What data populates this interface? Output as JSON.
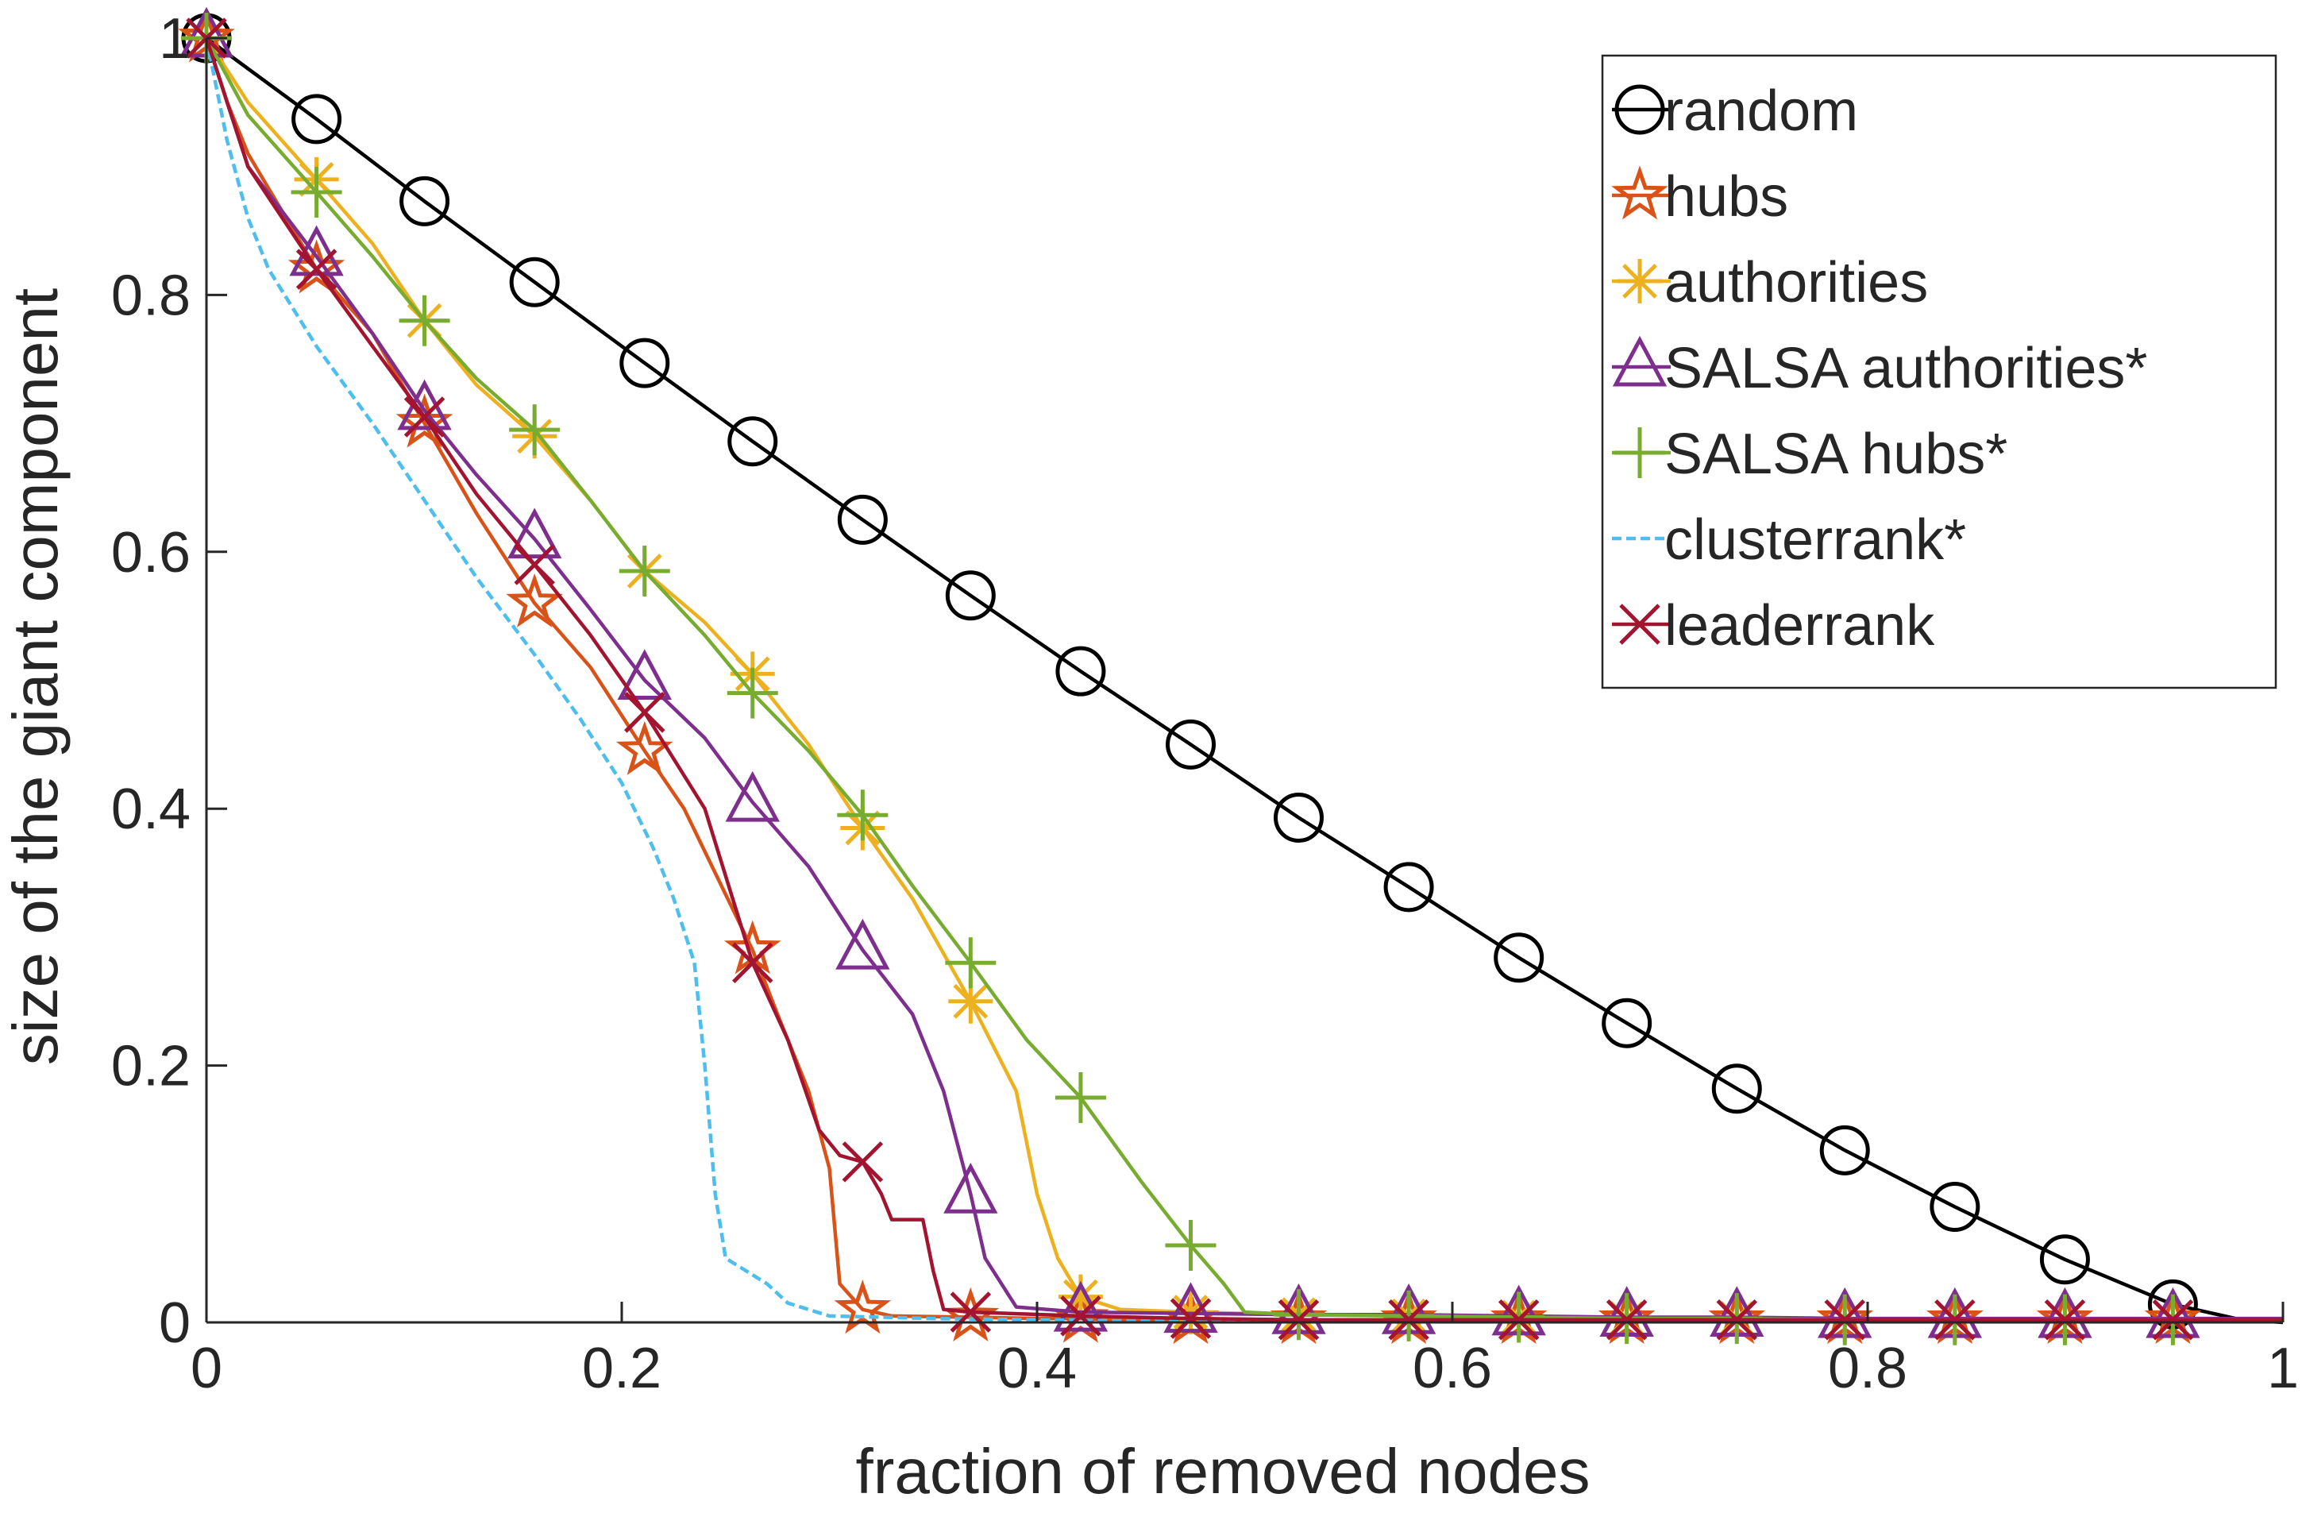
{
  "chart_data": {
    "type": "line",
    "title": "",
    "xlabel": "fraction of removed nodes",
    "ylabel": "size of the giant component",
    "xlim": [
      0,
      1
    ],
    "ylim": [
      0,
      1
    ],
    "xticks": [
      0,
      0.2,
      0.4,
      0.6,
      0.8,
      1
    ],
    "yticks": [
      0,
      0.2,
      0.4,
      0.6,
      0.8,
      1
    ],
    "xtick_labels": [
      "0",
      "0.2",
      "0.4",
      "0.6",
      "0.8",
      "1"
    ],
    "ytick_labels": [
      "0",
      "0.2",
      "0.4",
      "0.6",
      "0.8",
      "1"
    ],
    "grid": false,
    "legend_position": "top-right",
    "series": [
      {
        "name": "random",
        "color": "#000000",
        "marker": "circle",
        "dash": "solid",
        "x": [
          0,
          0.053,
          0.105,
          0.158,
          0.211,
          0.263,
          0.316,
          0.368,
          0.421,
          0.474,
          0.526,
          0.579,
          0.632,
          0.684,
          0.737,
          0.789,
          0.842,
          0.895,
          0.947,
          0.98,
          1.0
        ],
        "y": [
          1.0,
          0.937,
          0.873,
          0.81,
          0.747,
          0.686,
          0.625,
          0.566,
          0.507,
          0.45,
          0.393,
          0.339,
          0.284,
          0.233,
          0.182,
          0.134,
          0.09,
          0.049,
          0.014,
          0.002,
          0.0
        ],
        "marker_x": [
          0,
          0.053,
          0.105,
          0.158,
          0.211,
          0.263,
          0.316,
          0.368,
          0.421,
          0.474,
          0.526,
          0.579,
          0.632,
          0.684,
          0.737,
          0.789,
          0.842,
          0.895,
          0.947
        ]
      },
      {
        "name": "hubs",
        "color": "#d95319",
        "marker": "star",
        "dash": "solid",
        "x": [
          0,
          0.01,
          0.02,
          0.053,
          0.08,
          0.105,
          0.13,
          0.158,
          0.185,
          0.211,
          0.23,
          0.245,
          0.263,
          0.275,
          0.29,
          0.3,
          0.305,
          0.316,
          0.33,
          0.368,
          0.4,
          0.421,
          0.44,
          0.474,
          0.526,
          0.579,
          0.632,
          0.684,
          0.737,
          0.789,
          0.842,
          0.895,
          0.947,
          1.0
        ],
        "y": [
          1.0,
          0.95,
          0.91,
          0.82,
          0.77,
          0.7,
          0.63,
          0.56,
          0.51,
          0.445,
          0.4,
          0.35,
          0.29,
          0.24,
          0.18,
          0.12,
          0.03,
          0.01,
          0.005,
          0.004,
          0.003,
          0.003,
          0.002,
          0.002,
          0.002,
          0.002,
          0.002,
          0.002,
          0.002,
          0.002,
          0.002,
          0.002,
          0.002,
          0.002
        ],
        "marker_x": [
          0,
          0.053,
          0.105,
          0.158,
          0.211,
          0.263,
          0.316,
          0.368,
          0.421,
          0.474,
          0.526,
          0.579,
          0.632,
          0.684,
          0.737,
          0.789,
          0.842,
          0.895,
          0.947
        ]
      },
      {
        "name": "authorities",
        "color": "#edb120",
        "marker": "asterisk",
        "dash": "solid",
        "x": [
          0,
          0.02,
          0.053,
          0.08,
          0.105,
          0.13,
          0.158,
          0.185,
          0.211,
          0.24,
          0.263,
          0.29,
          0.316,
          0.34,
          0.368,
          0.39,
          0.4,
          0.41,
          0.421,
          0.44,
          0.474,
          0.526,
          0.579,
          0.632,
          0.684,
          0.737,
          0.789,
          0.842,
          0.895,
          0.947,
          1.0
        ],
        "y": [
          1.0,
          0.95,
          0.89,
          0.84,
          0.78,
          0.73,
          0.69,
          0.64,
          0.585,
          0.545,
          0.505,
          0.45,
          0.385,
          0.33,
          0.25,
          0.18,
          0.1,
          0.05,
          0.02,
          0.01,
          0.008,
          0.006,
          0.005,
          0.004,
          0.003,
          0.003,
          0.002,
          0.002,
          0.002,
          0.002,
          0.002
        ],
        "marker_x": [
          0,
          0.053,
          0.105,
          0.158,
          0.211,
          0.263,
          0.316,
          0.368,
          0.421,
          0.474,
          0.526,
          0.579,
          0.632,
          0.684,
          0.737,
          0.789,
          0.842,
          0.895,
          0.947
        ]
      },
      {
        "name": "SALSA authorities*",
        "color": "#7e2f8e",
        "marker": "triangle",
        "dash": "solid",
        "x": [
          0,
          0.01,
          0.02,
          0.053,
          0.08,
          0.105,
          0.13,
          0.158,
          0.185,
          0.211,
          0.24,
          0.263,
          0.29,
          0.316,
          0.34,
          0.355,
          0.368,
          0.375,
          0.39,
          0.421,
          0.474,
          0.526,
          0.579,
          0.632,
          0.684,
          0.737,
          0.789,
          0.842,
          0.895,
          0.947,
          1.0
        ],
        "y": [
          1.0,
          0.95,
          0.9,
          0.83,
          0.77,
          0.71,
          0.66,
          0.61,
          0.555,
          0.5,
          0.455,
          0.405,
          0.355,
          0.29,
          0.24,
          0.18,
          0.1,
          0.05,
          0.012,
          0.008,
          0.007,
          0.006,
          0.006,
          0.005,
          0.004,
          0.004,
          0.003,
          0.003,
          0.003,
          0.003,
          0.003
        ],
        "marker_x": [
          0,
          0.053,
          0.105,
          0.158,
          0.211,
          0.263,
          0.316,
          0.368,
          0.421,
          0.474,
          0.526,
          0.579,
          0.632,
          0.684,
          0.737,
          0.789,
          0.842,
          0.895,
          0.947
        ]
      },
      {
        "name": "SALSA hubs*",
        "color": "#77ac30",
        "marker": "plus",
        "dash": "solid",
        "x": [
          0,
          0.02,
          0.053,
          0.08,
          0.105,
          0.13,
          0.158,
          0.185,
          0.211,
          0.24,
          0.263,
          0.29,
          0.316,
          0.34,
          0.368,
          0.395,
          0.421,
          0.45,
          0.474,
          0.49,
          0.5,
          0.526,
          0.579,
          0.632,
          0.684,
          0.737,
          0.789,
          0.842,
          0.895,
          0.947,
          1.0
        ],
        "y": [
          1.0,
          0.94,
          0.88,
          0.83,
          0.78,
          0.735,
          0.695,
          0.64,
          0.585,
          0.535,
          0.49,
          0.445,
          0.395,
          0.34,
          0.28,
          0.22,
          0.175,
          0.11,
          0.06,
          0.03,
          0.008,
          0.006,
          0.005,
          0.004,
          0.003,
          0.003,
          0.002,
          0.002,
          0.002,
          0.002,
          0.002
        ],
        "marker_x": [
          0,
          0.053,
          0.105,
          0.158,
          0.211,
          0.263,
          0.316,
          0.368,
          0.421,
          0.474,
          0.526,
          0.579,
          0.632,
          0.684,
          0.737,
          0.789,
          0.842,
          0.895,
          0.947
        ]
      },
      {
        "name": "clusterrank*",
        "color": "#4dbeee",
        "marker": "none",
        "dash": "dashed",
        "x": [
          0,
          0.01,
          0.02,
          0.03,
          0.053,
          0.08,
          0.105,
          0.13,
          0.158,
          0.18,
          0.2,
          0.215,
          0.225,
          0.235,
          0.24,
          0.245,
          0.25,
          0.26,
          0.27,
          0.28,
          0.3,
          0.35,
          0.4,
          0.45,
          1.0
        ],
        "y": [
          1.0,
          0.92,
          0.86,
          0.82,
          0.76,
          0.7,
          0.64,
          0.58,
          0.52,
          0.47,
          0.42,
          0.37,
          0.33,
          0.28,
          0.2,
          0.1,
          0.05,
          0.04,
          0.03,
          0.015,
          0.005,
          0.003,
          0.002,
          0.001,
          0.001
        ]
      },
      {
        "name": "leaderrank",
        "color": "#a2142f",
        "marker": "x",
        "dash": "solid",
        "x": [
          0,
          0.01,
          0.02,
          0.053,
          0.08,
          0.105,
          0.13,
          0.158,
          0.185,
          0.211,
          0.24,
          0.263,
          0.28,
          0.295,
          0.305,
          0.316,
          0.325,
          0.33,
          0.345,
          0.35,
          0.355,
          0.368,
          0.421,
          0.474,
          0.526,
          0.579,
          0.632,
          0.684,
          0.737,
          0.789,
          0.842,
          0.895,
          0.947,
          1.0
        ],
        "y": [
          1.0,
          0.95,
          0.9,
          0.82,
          0.76,
          0.705,
          0.645,
          0.59,
          0.535,
          0.475,
          0.4,
          0.28,
          0.22,
          0.15,
          0.13,
          0.125,
          0.1,
          0.08,
          0.08,
          0.04,
          0.01,
          0.008,
          0.005,
          0.003,
          0.002,
          0.002,
          0.002,
          0.002,
          0.002,
          0.002,
          0.002,
          0.002,
          0.002,
          0.002
        ],
        "marker_x": [
          0,
          0.053,
          0.105,
          0.158,
          0.211,
          0.263,
          0.316,
          0.368,
          0.421,
          0.474,
          0.526,
          0.579,
          0.632,
          0.684,
          0.737,
          0.789,
          0.842,
          0.895,
          0.947
        ]
      }
    ]
  }
}
